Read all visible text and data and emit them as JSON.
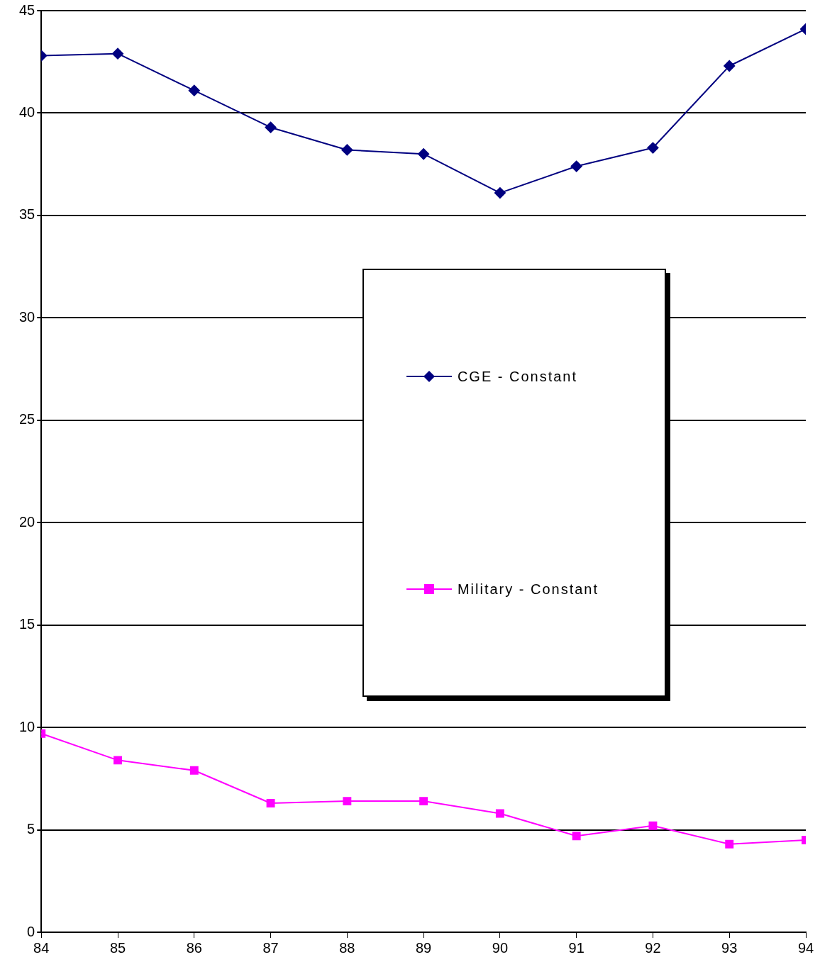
{
  "chart_data": {
    "type": "line",
    "x": [
      84,
      85,
      86,
      87,
      88,
      89,
      90,
      91,
      92,
      93,
      94
    ],
    "xlim": [
      84,
      94
    ],
    "xticks": [
      84,
      85,
      86,
      87,
      88,
      89,
      90,
      91,
      92,
      93,
      94
    ],
    "ylim": [
      0,
      45
    ],
    "yticks": [
      0,
      5,
      10,
      15,
      20,
      25,
      30,
      35,
      40,
      45
    ],
    "grid": "y",
    "legend": "center",
    "series": [
      {
        "name": "CGE - Constant",
        "color": "#000080",
        "marker": "diamond",
        "values": [
          42.8,
          42.9,
          41.1,
          39.3,
          38.2,
          38.0,
          36.1,
          37.4,
          38.3,
          42.3,
          44.1
        ]
      },
      {
        "name": "Military - Constant",
        "color": "#ff00ff",
        "marker": "square",
        "values": [
          9.7,
          8.4,
          7.9,
          6.3,
          6.4,
          6.4,
          5.8,
          4.7,
          5.2,
          4.3,
          4.5
        ]
      }
    ]
  }
}
